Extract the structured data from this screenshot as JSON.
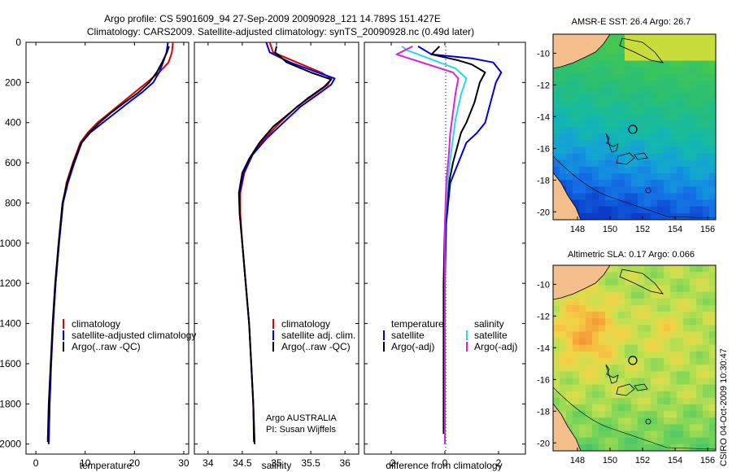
{
  "title": {
    "line1": "Argo profile: CS 5901609_94 27-Sep-2009 20090928_121 14.789S 151.427E",
    "line2": "Climatology: CARS2009. Satellite-adjusted climatology: synTS_20090928.nc (0.49d later)"
  },
  "footer": {
    "agency": "Argo AUSTRALIA",
    "pi": "PI: Susan Wijffels",
    "stamp": "CSIRO 04-Oct-2009 10:30:47"
  },
  "colors": {
    "climatology": "#dd0000",
    "satellite": "#0000dd",
    "argo": "#000000",
    "satellite_salinity": "#22dddd",
    "argo_salinity": "#dd22dd"
  },
  "chart_data": [
    {
      "type": "line",
      "panel": "temperature",
      "xlabel": "temperature",
      "xlim": [
        -2,
        31
      ],
      "xticks": [
        "0",
        "10",
        "20",
        "30"
      ],
      "xtick_values": [
        0,
        10,
        20,
        30
      ],
      "ylim": [
        2050,
        0
      ],
      "yticks": [
        "0",
        "200",
        "400",
        "600",
        "800",
        "1000",
        "1200",
        "1400",
        "1600",
        "1800",
        "2000"
      ],
      "ytick_values": [
        0,
        200,
        400,
        600,
        800,
        1000,
        1200,
        1400,
        1600,
        1800,
        2000
      ],
      "legend": [
        "climatology",
        "satellite-adjusted climatology",
        "Argo(..raw -QC)"
      ],
      "series": [
        {
          "name": "climatology",
          "color": "#dd0000",
          "points": [
            [
              27.8,
              0
            ],
            [
              27.6,
              50
            ],
            [
              26.9,
              100
            ],
            [
              25.0,
              150
            ],
            [
              22.5,
              200
            ],
            [
              20.0,
              250
            ],
            [
              17.5,
              300
            ],
            [
              15.0,
              350
            ],
            [
              12.5,
              400
            ],
            [
              10.5,
              450
            ],
            [
              9.0,
              500
            ],
            [
              7.5,
              600
            ],
            [
              6.2,
              700
            ],
            [
              5.5,
              800
            ],
            [
              4.7,
              1000
            ],
            [
              4.0,
              1200
            ],
            [
              3.5,
              1400
            ],
            [
              3.1,
              1600
            ],
            [
              2.8,
              1800
            ],
            [
              2.6,
              2000
            ]
          ]
        },
        {
          "name": "satellite-adjusted climatology",
          "color": "#0000dd",
          "points": [
            [
              26.8,
              0
            ],
            [
              26.5,
              50
            ],
            [
              25.8,
              100
            ],
            [
              25.0,
              150
            ],
            [
              23.8,
              200
            ],
            [
              21.5,
              250
            ],
            [
              18.8,
              300
            ],
            [
              16.2,
              350
            ],
            [
              13.6,
              400
            ],
            [
              11.0,
              450
            ],
            [
              9.3,
              500
            ],
            [
              7.8,
              600
            ],
            [
              6.5,
              700
            ],
            [
              5.5,
              800
            ],
            [
              4.7,
              1000
            ],
            [
              4.0,
              1200
            ],
            [
              3.5,
              1400
            ],
            [
              3.1,
              1600
            ],
            [
              2.8,
              1800
            ],
            [
              2.6,
              2000
            ]
          ]
        },
        {
          "name": "Argo(..raw -QC)",
          "color": "#000000",
          "points": [
            [
              27.0,
              20
            ],
            [
              26.6,
              50
            ],
            [
              25.6,
              100
            ],
            [
              24.5,
              150
            ],
            [
              23.0,
              200
            ],
            [
              20.8,
              250
            ],
            [
              18.0,
              300
            ],
            [
              15.3,
              350
            ],
            [
              12.9,
              400
            ],
            [
              10.8,
              450
            ],
            [
              9.2,
              500
            ],
            [
              7.6,
              600
            ],
            [
              6.3,
              700
            ],
            [
              5.4,
              800
            ],
            [
              4.6,
              1000
            ],
            [
              3.9,
              1200
            ],
            [
              3.4,
              1400
            ],
            [
              3.0,
              1600
            ],
            [
              2.6,
              1800
            ],
            [
              2.4,
              1990
            ]
          ]
        }
      ]
    },
    {
      "type": "line",
      "panel": "salinity",
      "xlabel": "salinity",
      "xlim": [
        33.8,
        36.2
      ],
      "xticks": [
        "34",
        "34.5",
        "35",
        "35.5",
        "36"
      ],
      "xtick_values": [
        34,
        34.5,
        35,
        35.5,
        36
      ],
      "ylim": [
        2050,
        0
      ],
      "legend": [
        "climatology",
        "satellite adj. clim.",
        "Argo(..raw -QC)"
      ],
      "series": [
        {
          "name": "climatology",
          "color": "#dd0000",
          "points": [
            [
              34.9,
              0
            ],
            [
              34.95,
              50
            ],
            [
              35.3,
              100
            ],
            [
              35.65,
              150
            ],
            [
              35.8,
              180
            ],
            [
              35.75,
              210
            ],
            [
              35.55,
              260
            ],
            [
              35.3,
              320
            ],
            [
              35.05,
              400
            ],
            [
              34.82,
              480
            ],
            [
              34.65,
              560
            ],
            [
              34.53,
              650
            ],
            [
              34.47,
              750
            ],
            [
              34.47,
              850
            ],
            [
              34.5,
              1000
            ],
            [
              34.55,
              1200
            ],
            [
              34.6,
              1400
            ],
            [
              34.63,
              1600
            ],
            [
              34.66,
              1800
            ],
            [
              34.68,
              2000
            ]
          ]
        },
        {
          "name": "satellite adj. clim.",
          "color": "#0000dd",
          "points": [
            [
              34.85,
              0
            ],
            [
              34.9,
              50
            ],
            [
              35.2,
              100
            ],
            [
              35.6,
              150
            ],
            [
              35.85,
              180
            ],
            [
              35.8,
              210
            ],
            [
              35.6,
              260
            ],
            [
              35.35,
              320
            ],
            [
              35.1,
              400
            ],
            [
              34.85,
              480
            ],
            [
              34.65,
              560
            ],
            [
              34.52,
              650
            ],
            [
              34.46,
              750
            ],
            [
              34.46,
              850
            ],
            [
              34.5,
              1000
            ],
            [
              34.55,
              1200
            ],
            [
              34.6,
              1400
            ],
            [
              34.63,
              1600
            ],
            [
              34.66,
              1800
            ],
            [
              34.68,
              2000
            ]
          ]
        },
        {
          "name": "Argo(..raw -QC)",
          "color": "#000000",
          "points": [
            [
              35.0,
              20
            ],
            [
              34.98,
              50
            ],
            [
              35.15,
              100
            ],
            [
              35.5,
              150
            ],
            [
              35.8,
              185
            ],
            [
              35.7,
              220
            ],
            [
              35.45,
              280
            ],
            [
              35.2,
              350
            ],
            [
              34.95,
              420
            ],
            [
              34.75,
              500
            ],
            [
              34.6,
              580
            ],
            [
              34.5,
              650
            ],
            [
              34.45,
              750
            ],
            [
              34.46,
              850
            ],
            [
              34.5,
              1000
            ],
            [
              34.55,
              1200
            ],
            [
              34.6,
              1400
            ],
            [
              34.63,
              1600
            ],
            [
              34.66,
              1800
            ],
            [
              34.67,
              1990
            ]
          ]
        }
      ]
    },
    {
      "type": "line",
      "panel": "difference",
      "xlabel": "difference from climatology",
      "xlim": [
        -3,
        3
      ],
      "xticks": [
        "-2",
        "0",
        "2"
      ],
      "xtick_values": [
        -2,
        0,
        2
      ],
      "ylim": [
        2050,
        0
      ],
      "legend_headers": [
        "temperature",
        "salinity"
      ],
      "legend": [
        "satellite",
        "Argo(-adj)",
        "satellite",
        "Argo(-adj)"
      ],
      "series": [
        {
          "name": "satellite",
          "group": "temperature",
          "color": "#0000dd",
          "points": [
            [
              -1.0,
              20
            ],
            [
              -0.5,
              60
            ],
            [
              1.0,
              80
            ],
            [
              1.8,
              100
            ],
            [
              2.1,
              150
            ],
            [
              1.9,
              200
            ],
            [
              1.7,
              300
            ],
            [
              1.5,
              400
            ],
            [
              1.2,
              450
            ],
            [
              0.8,
              500
            ],
            [
              0.5,
              600
            ],
            [
              0.2,
              700
            ],
            [
              0.05,
              900
            ],
            [
              0.0,
              1200
            ],
            [
              0.0,
              2000
            ]
          ]
        },
        {
          "name": "Argo(-adj)",
          "group": "temperature",
          "color": "#000000",
          "points": [
            [
              -0.2,
              20
            ],
            [
              -0.5,
              60
            ],
            [
              0.5,
              90
            ],
            [
              1.0,
              110
            ],
            [
              1.5,
              150
            ],
            [
              1.3,
              200
            ],
            [
              1.1,
              300
            ],
            [
              0.8,
              400
            ],
            [
              0.6,
              450
            ],
            [
              0.5,
              500
            ],
            [
              0.3,
              600
            ],
            [
              0.15,
              700
            ],
            [
              0.0,
              900
            ],
            [
              -0.05,
              1200
            ],
            [
              -0.05,
              1950
            ]
          ]
        },
        {
          "name": "satellite",
          "group": "salinity",
          "color": "#22dddd",
          "points": [
            [
              -1.6,
              20
            ],
            [
              -1.4,
              40
            ],
            [
              -1.0,
              60
            ],
            [
              -0.2,
              100
            ],
            [
              0.4,
              130
            ],
            [
              0.8,
              180
            ],
            [
              0.6,
              260
            ],
            [
              0.4,
              380
            ],
            [
              0.3,
              480
            ],
            [
              0.2,
              580
            ],
            [
              0.1,
              700
            ],
            [
              0.0,
              900
            ],
            [
              0.0,
              2000
            ]
          ]
        },
        {
          "name": "Argo(-adj)",
          "group": "salinity",
          "color": "#dd22dd",
          "points": [
            [
              -1.2,
              20
            ],
            [
              -1.8,
              60
            ],
            [
              0.3,
              150
            ],
            [
              0.5,
              180
            ],
            [
              0.4,
              250
            ],
            [
              0.3,
              350
            ],
            [
              0.2,
              450
            ],
            [
              0.15,
              550
            ],
            [
              0.05,
              700
            ],
            [
              0.0,
              900
            ],
            [
              0.0,
              2000
            ]
          ]
        }
      ]
    },
    {
      "type": "heatmap",
      "panel": "sst_map",
      "title": "AMSR-E SST: 26.4 Argo: 26.7",
      "xlim": [
        146.5,
        156.5
      ],
      "ylim": [
        -20.5,
        -8.8
      ],
      "xticks": [
        "148",
        "150",
        "152",
        "154",
        "156"
      ],
      "xtick_values": [
        148,
        150,
        152,
        154,
        156
      ],
      "yticks": [
        "-10",
        "-12",
        "-14",
        "-16",
        "-18",
        "-20"
      ],
      "ytick_values": [
        -10,
        -12,
        -14,
        -16,
        -18,
        -20
      ],
      "argo_position": [
        151.4,
        -14.8
      ]
    },
    {
      "type": "heatmap",
      "panel": "sla_map",
      "title": "Altimetric SLA: 0.17 Argo: 0.066",
      "xlim": [
        146.5,
        156.5
      ],
      "ylim": [
        -20.5,
        -8.8
      ],
      "xticks": [
        "148",
        "150",
        "152",
        "154",
        "156"
      ],
      "xtick_values": [
        148,
        150,
        152,
        154,
        156
      ],
      "yticks": [
        "-10",
        "-12",
        "-14",
        "-16",
        "-18",
        "-20"
      ],
      "ytick_values": [
        -10,
        -12,
        -14,
        -16,
        -18,
        -20
      ],
      "argo_position": [
        151.4,
        -14.8
      ]
    }
  ]
}
